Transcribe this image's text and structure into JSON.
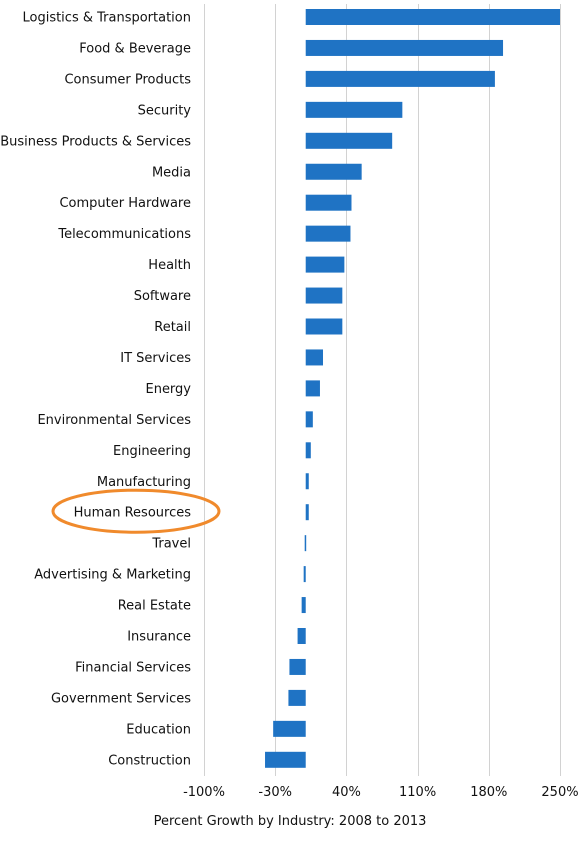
{
  "chart_data": {
    "type": "bar",
    "orientation": "horizontal",
    "categories": [
      "Logistics & Transportation",
      "Food & Beverage",
      "Consumer Products",
      "Security",
      "Business Products & Services",
      "Media",
      "Computer Hardware",
      "Telecommunications",
      "Health",
      "Software",
      "Retail",
      "IT Services",
      "Energy",
      "Environmental Services",
      "Engineering",
      "Manufacturing",
      "Human Resources",
      "Travel",
      "Advertising & Marketing",
      "Real Estate",
      "Insurance",
      "Financial Services",
      "Government Services",
      "Education",
      "Construction"
    ],
    "values": [
      250,
      194,
      186,
      95,
      85,
      55,
      45,
      44,
      38,
      36,
      36,
      17,
      14,
      7,
      5,
      3,
      3,
      -1,
      -2,
      -4,
      -8,
      -16,
      -17,
      -32,
      -40
    ],
    "xlim": [
      -100,
      250
    ],
    "xticks": [
      -100,
      -30,
      40,
      110,
      180,
      250
    ],
    "xtick_labels": [
      "-100%",
      "-30%",
      "40%",
      "110%",
      "180%",
      "250%"
    ],
    "xlabel": "Percent Growth by Industry: 2008 to 2013",
    "bar_color": "#1f73c4",
    "grid": true,
    "highlight": {
      "category": "Human Resources",
      "shape": "ellipse",
      "color": "#f08a2c"
    }
  }
}
